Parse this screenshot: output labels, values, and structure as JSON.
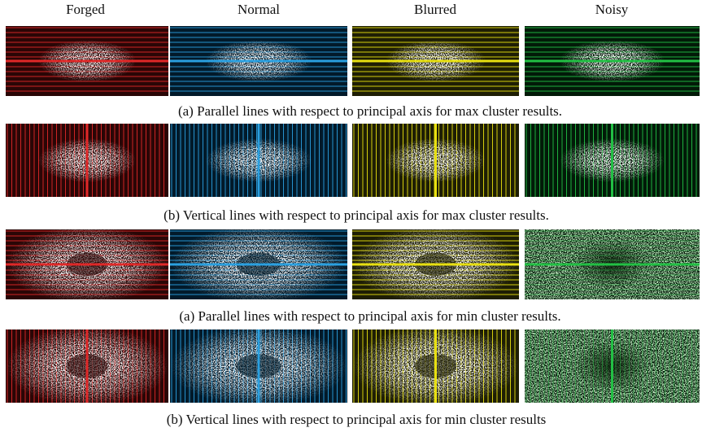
{
  "headers": [
    "Forged",
    "Normal",
    "Blurred",
    "Noisy"
  ],
  "captions": [
    "(a) Parallel lines with respect to principal axis for max cluster results.",
    "(b) Vertical lines with respect to principal axis for max cluster results.",
    "(a) Parallel lines with respect to principal axis for min cluster results.",
    "(b) Vertical lines with respect to principal axis for min cluster results"
  ]
}
